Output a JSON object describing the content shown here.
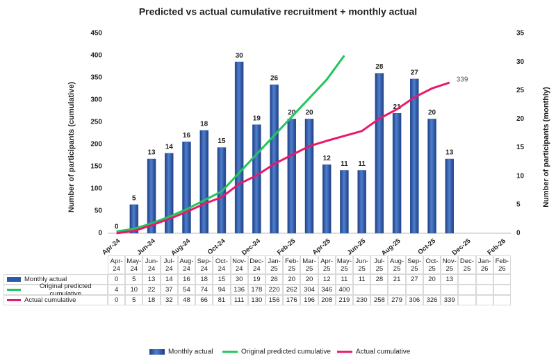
{
  "chart_data": {
    "type": "bar",
    "title": "Predicted vs actual cumulative recruitment + monthly actual",
    "y_label": "Number of participants (cumulative)",
    "y2_label": "Number of participants (monthly)",
    "categories": [
      "Apr-24",
      "May-24",
      "Jun-24",
      "Jul-24",
      "Aug-24",
      "Sep-24",
      "Oct-24",
      "Nov-24",
      "Dec-24",
      "Jan-25",
      "Feb-25",
      "Mar-25",
      "Apr-25",
      "May-25",
      "Jun-25",
      "Jul-25",
      "Aug-25",
      "Sep-25",
      "Oct-25",
      "Nov-25",
      "Dec-25",
      "Jan-26",
      "Feb-26"
    ],
    "series": [
      {
        "name": "Monthly actual",
        "type": "bar",
        "axis": "y2",
        "color": "#2d5aa6",
        "data_labels": true,
        "values": [
          0,
          5,
          13,
          14,
          16,
          18,
          15,
          30,
          19,
          26,
          20,
          20,
          12,
          11,
          11,
          28,
          21,
          27,
          20,
          13,
          null,
          null,
          null
        ]
      },
      {
        "name": "Original predicted cumulative",
        "type": "line",
        "color": "#22c55e",
        "values": [
          4,
          10,
          22,
          37,
          54,
          74,
          94,
          136,
          178,
          220,
          262,
          304,
          346,
          400,
          null,
          null,
          null,
          null,
          null,
          null,
          null,
          null,
          null
        ]
      },
      {
        "name": "Actual cumulative",
        "type": "line",
        "color": "#e8196b",
        "end_label": true,
        "values": [
          0,
          5,
          18,
          32,
          48,
          66,
          81,
          111,
          130,
          156,
          176,
          196,
          208,
          219,
          230,
          258,
          279,
          306,
          326,
          339,
          null,
          null,
          null
        ]
      }
    ],
    "ylim": [
      0,
      450
    ],
    "yticks": [
      0,
      50,
      100,
      150,
      200,
      250,
      300,
      350,
      400,
      450
    ],
    "y2lim": [
      0,
      35
    ],
    "y2ticks": [
      0,
      5,
      10,
      15,
      20,
      25,
      30,
      35
    ],
    "grid": false
  }
}
